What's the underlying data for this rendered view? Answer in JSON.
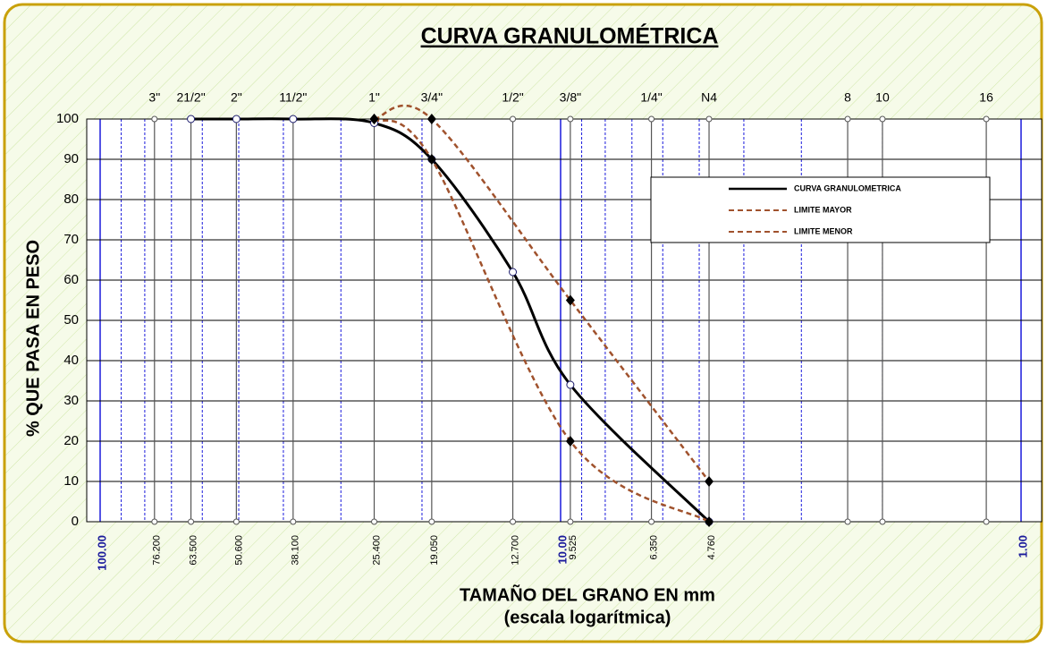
{
  "chart_data": {
    "type": "line",
    "title": "CURVA GRANULOMÉTRICA",
    "ylabel": "% QUE PASA EN PESO",
    "xlabel": "TAMAÑO DEL GRANO EN mm",
    "xlabel_note": "(escala logarítmica)",
    "xscale": "log",
    "xlim": [
      100,
      1
    ],
    "ylim": [
      0,
      100
    ],
    "yticks": [
      0,
      10,
      20,
      30,
      40,
      50,
      60,
      70,
      80,
      90,
      100
    ],
    "xticks": [
      {
        "value": 100,
        "label": "100.00"
      },
      {
        "value": 10,
        "label": "10.00"
      },
      {
        "value": 1,
        "label": "1.00"
      }
    ],
    "xminor": [
      90,
      80,
      70,
      60,
      50,
      40,
      30,
      20,
      9,
      8,
      7,
      6,
      5,
      4,
      3,
      2
    ],
    "grid": true,
    "sieves": [
      {
        "label": "3\"",
        "value": 76.2,
        "size_label": "76.200"
      },
      {
        "label": "21/2\"",
        "value": 63.5,
        "size_label": "63.500"
      },
      {
        "label": "2\"",
        "value": 50.6,
        "size_label": "50.600"
      },
      {
        "label": "11/2\"",
        "value": 38.1,
        "size_label": "38.100"
      },
      {
        "label": "1\"",
        "value": 25.4,
        "size_label": "25.400"
      },
      {
        "label": "3/4\"",
        "value": 19.05,
        "size_label": "19.050"
      },
      {
        "label": "1/2\"",
        "value": 12.7,
        "size_label": "12.700"
      },
      {
        "label": "3/8\"",
        "value": 9.525,
        "size_label": "9.525"
      },
      {
        "label": "1/4\"",
        "value": 6.35,
        "size_label": "6.350"
      },
      {
        "label": "N4",
        "value": 4.76,
        "size_label": "4.760"
      },
      {
        "label": "8",
        "value": 2.38
      },
      {
        "label": "10",
        "value": 2.0
      },
      {
        "label": "16",
        "value": 1.19
      }
    ],
    "legend": "upper right",
    "series": [
      {
        "name": "CURVA GRANULOMETRICA",
        "color": "#000000",
        "style": "solid",
        "marker": "circle",
        "x": [
          63.5,
          50.6,
          38.1,
          25.4,
          19.05,
          12.7,
          9.525,
          4.76
        ],
        "values": [
          100,
          100,
          100,
          99,
          90,
          62,
          34,
          0
        ]
      },
      {
        "name": "LIMITE MAYOR",
        "color": "#a0522d",
        "style": "dashed",
        "marker": "diamond",
        "x": [
          25.4,
          19.05,
          9.525,
          4.76
        ],
        "values": [
          100,
          100,
          55,
          10
        ]
      },
      {
        "name": "LIMITE MENOR",
        "color": "#a0522d",
        "style": "dashed",
        "marker": "diamond",
        "x": [
          25.4,
          19.05,
          9.525,
          4.76
        ],
        "values": [
          100,
          90,
          20,
          0
        ]
      }
    ]
  }
}
